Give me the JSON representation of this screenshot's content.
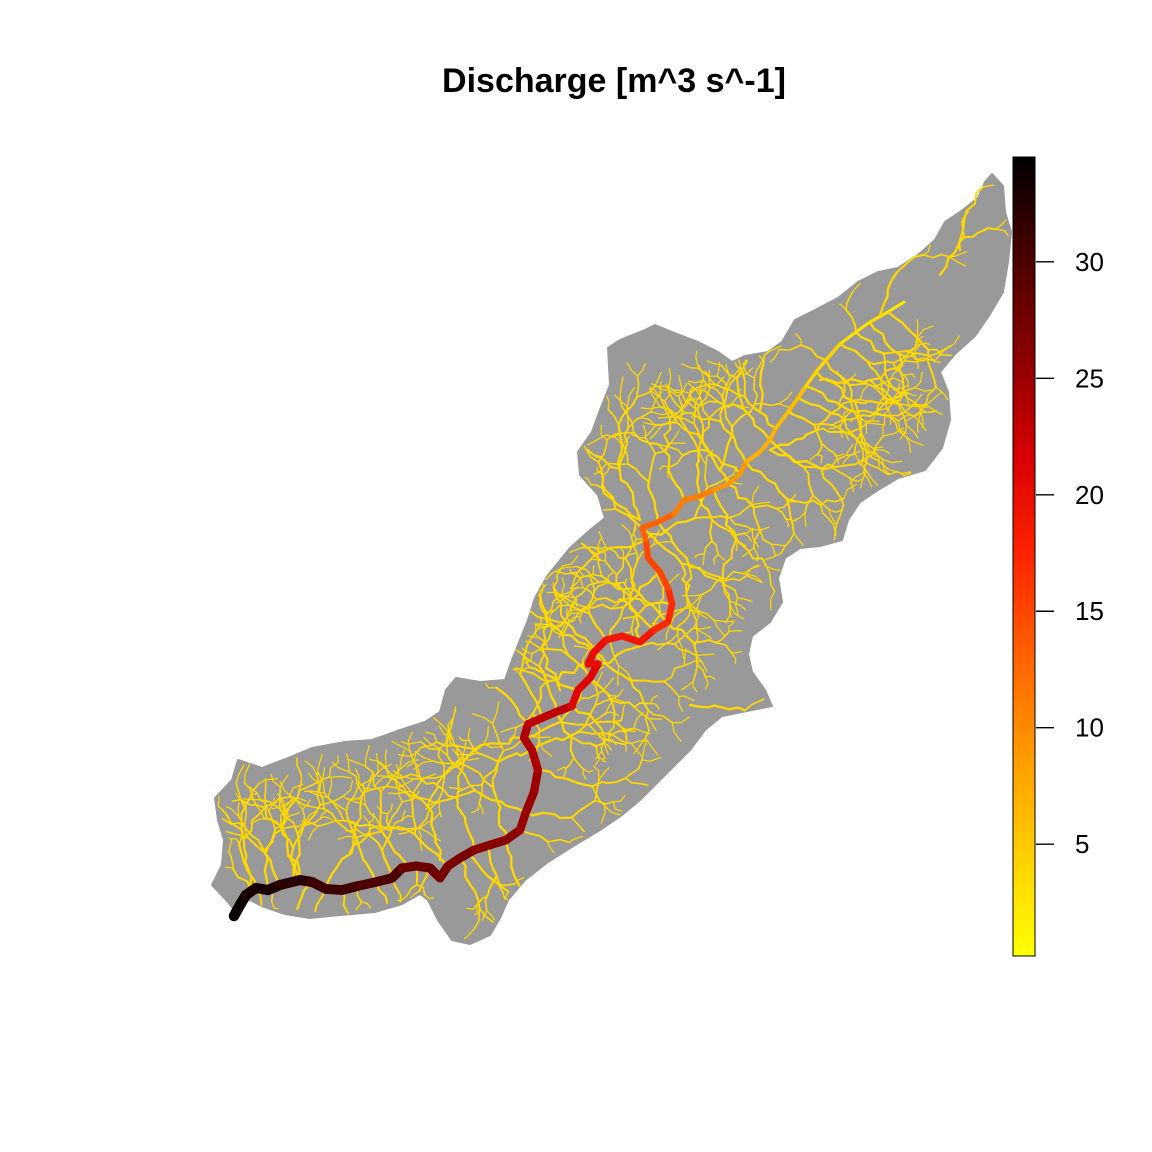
{
  "title": "Discharge [m^3 s^-1]",
  "legend": {
    "min": 0.2,
    "max": 34.5,
    "ticks": [
      {
        "value": 5,
        "label": "5"
      },
      {
        "value": 10,
        "label": "10"
      },
      {
        "value": 15,
        "label": "15"
      },
      {
        "value": 20,
        "label": "20"
      },
      {
        "value": 25,
        "label": "25"
      },
      {
        "value": 30,
        "label": "30"
      }
    ],
    "gradient_colors": [
      "#ffff00",
      "#ffd000",
      "#ff9a00",
      "#ff6200",
      "#ff2400",
      "#d80000",
      "#8a0000",
      "#4a0000",
      "#000000"
    ]
  },
  "colors": {
    "catchment": "#999999",
    "tributary": "#ffd800",
    "background": "#ffffff"
  },
  "main_channel_discharge": [
    2,
    3,
    4,
    6,
    7,
    9,
    11,
    13,
    15,
    17,
    19,
    20,
    21,
    23,
    24,
    25,
    26,
    27,
    28,
    30,
    31,
    32,
    33,
    34
  ]
}
